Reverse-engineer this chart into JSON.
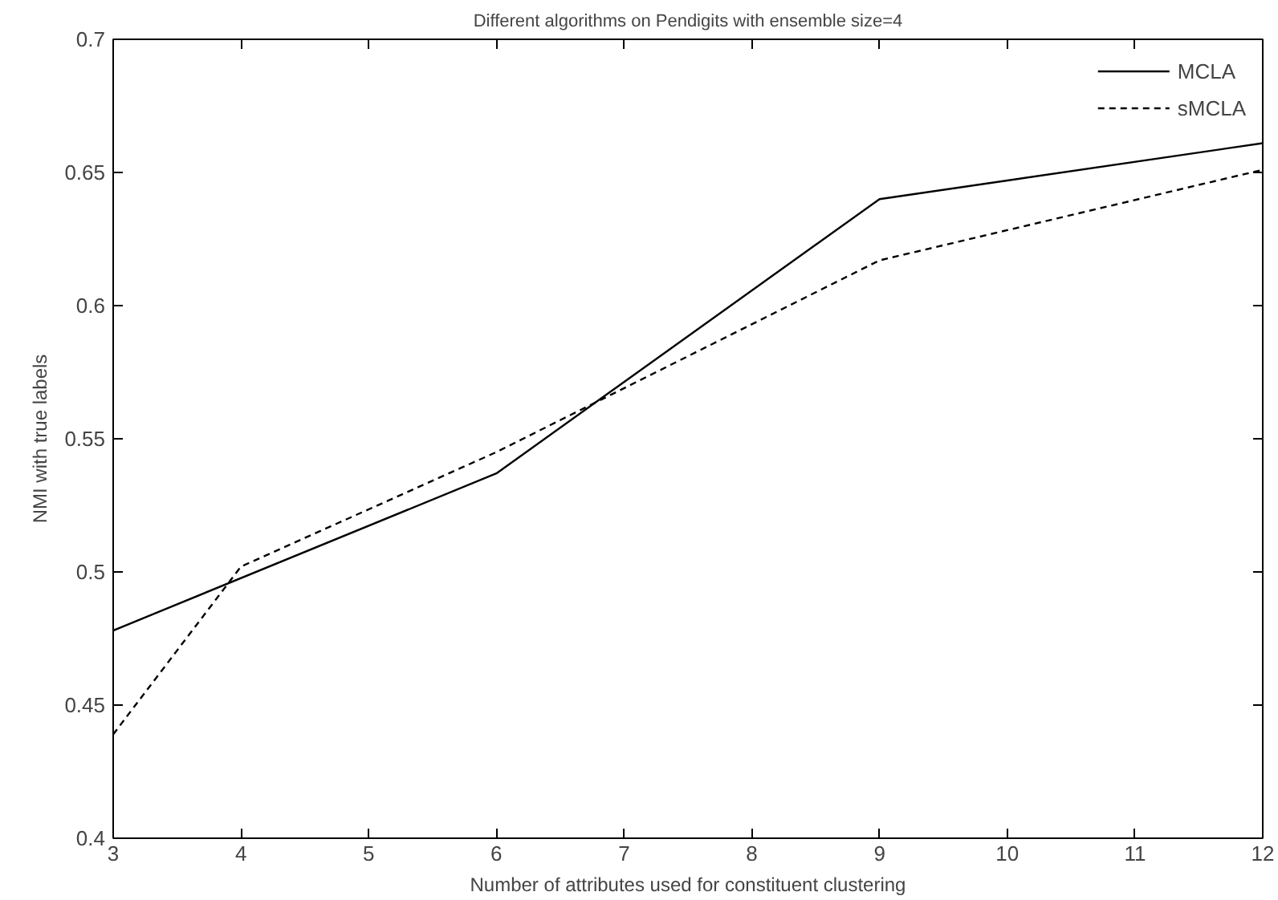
{
  "chart_data": {
    "type": "line",
    "title": "Different algorithms on Pendigits with ensemble size=4",
    "xlabel": "Number of attributes used for constituent clustering",
    "ylabel": "NMI with true labels",
    "x": [
      3,
      4,
      6,
      9,
      12
    ],
    "series": [
      {
        "name": "MCLA",
        "color": "#000000",
        "values": [
          0.478,
          null,
          0.537,
          0.64,
          0.661
        ],
        "line_style": "solid"
      },
      {
        "name": "sMCLA",
        "color": "#000000",
        "values": [
          0.439,
          0.502,
          0.545,
          0.617,
          0.651
        ],
        "line_style": "dashed"
      }
    ],
    "xlim": [
      3,
      12
    ],
    "xticks": [
      3,
      4,
      5,
      6,
      7,
      8,
      9,
      10,
      11,
      12
    ],
    "ylim": [
      0.4,
      0.7
    ],
    "yticks": [
      0.4,
      0.45,
      0.5,
      0.55,
      0.6,
      0.65,
      0.7
    ],
    "grid": false,
    "legend": "top right",
    "marker": "none"
  }
}
